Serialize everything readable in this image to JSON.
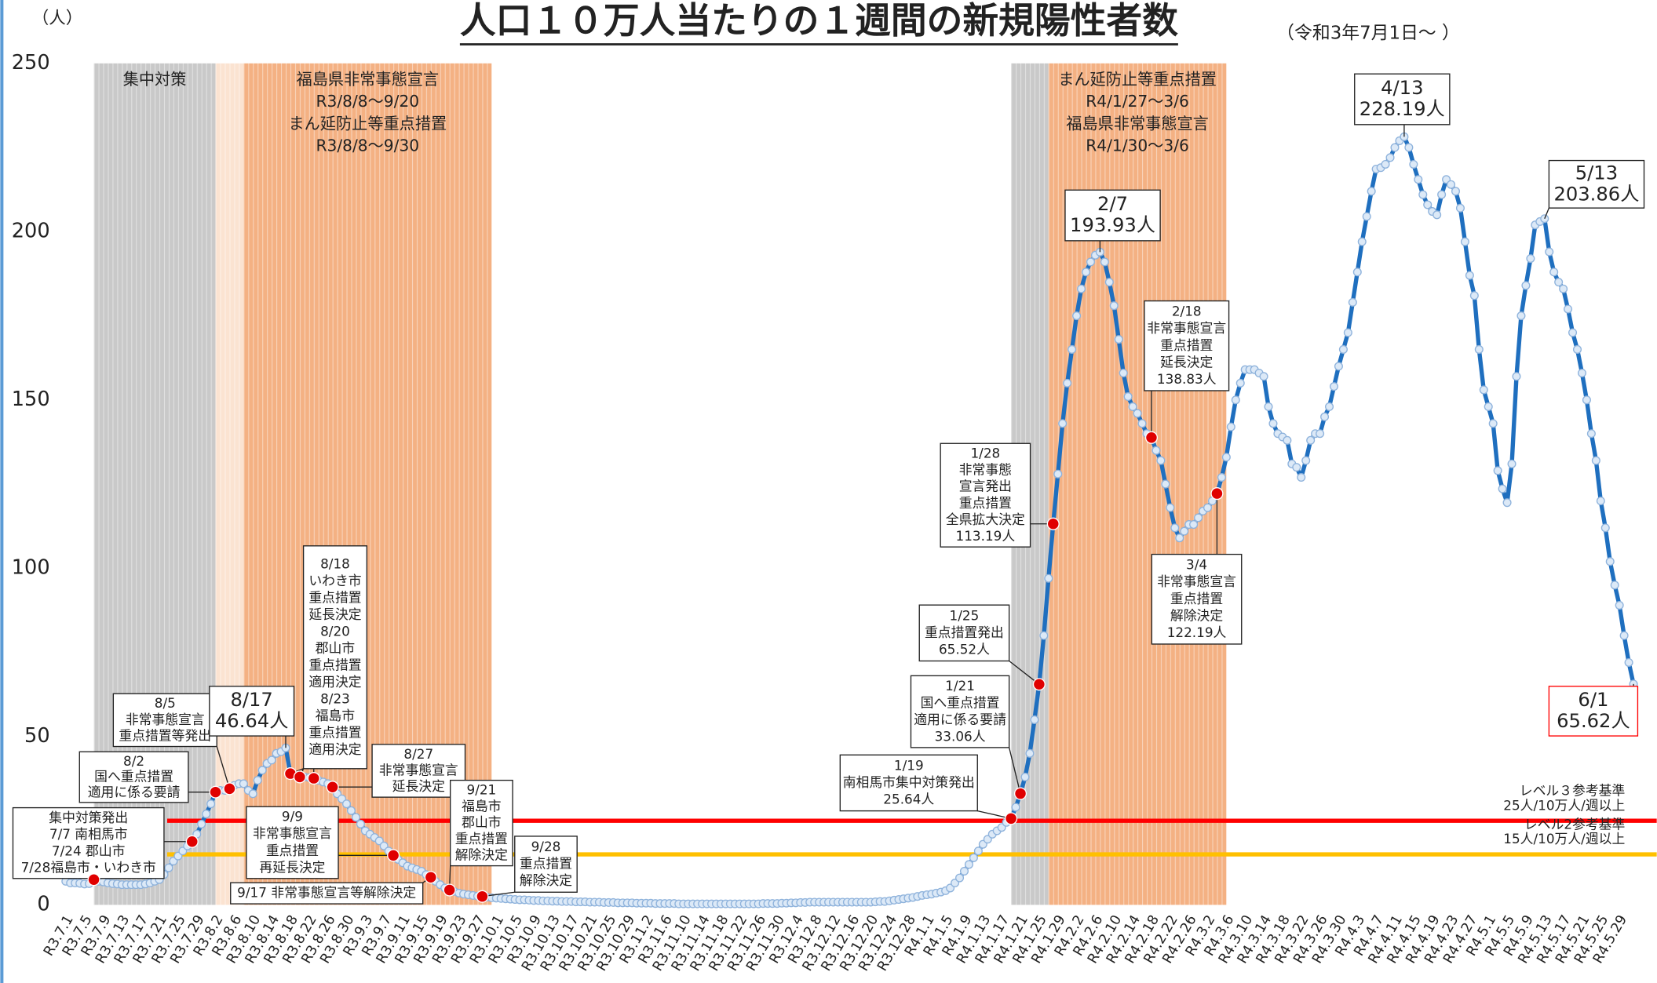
{
  "chart_data": {
    "type": "line",
    "title": "人口１０万人当たりの１週間の新規陽性者数",
    "subtitle": "（令和3年7月1日～ ）",
    "y_unit": "（人）",
    "categories": [
      "R3.7.1",
      null,
      null,
      null,
      "R3.7.5",
      null,
      null,
      null,
      "R3.7.9",
      null,
      null,
      null,
      "R3.7.13",
      null,
      null,
      null,
      "R3.7.17",
      null,
      null,
      null,
      "R3.7.21",
      null,
      null,
      null,
      "R3.7.25",
      null,
      null,
      null,
      "R3.7.29",
      null,
      null,
      null,
      "R3.8.2",
      null,
      null,
      null,
      "R3.8.6",
      null,
      null,
      null,
      "R3.8.10",
      null,
      null,
      null,
      "R3.8.14",
      null,
      null,
      null,
      "R3.8.18",
      null,
      null,
      null,
      "R3.8.22",
      null,
      null,
      null,
      "R3.8.26",
      null,
      null,
      null,
      "R3.8.30",
      null,
      null,
      null,
      "R3.9.3",
      null,
      null,
      null,
      "R3.9.7",
      null,
      null,
      null,
      "R3.9.11",
      null,
      null,
      null,
      "R3.9.15",
      null,
      null,
      null,
      "R3.9.19",
      null,
      null,
      null,
      "R3.9.23",
      null,
      null,
      null,
      "R3.9.27",
      null,
      null,
      null,
      "R3.10.1",
      null,
      null,
      null,
      "R3.10.5",
      null,
      null,
      null,
      "R3.10.9",
      null,
      null,
      null,
      "R3.10.13",
      null,
      null,
      null,
      "R3.10.17",
      null,
      null,
      null,
      "R3.10.21",
      null,
      null,
      null,
      "R3.10.25",
      null,
      null,
      null,
      "R3.10.29",
      null,
      null,
      null,
      "R3.11.2",
      null,
      null,
      null,
      "R3.11.6",
      null,
      null,
      null,
      "R3.11.10",
      null,
      null,
      null,
      "R3.11.14",
      null,
      null,
      null,
      "R3.11.18",
      null,
      null,
      null,
      "R3.11.22",
      null,
      null,
      null,
      "R3.11.26",
      null,
      null,
      null,
      "R3.11.30",
      null,
      null,
      null,
      "R3.12.4",
      null,
      null,
      null,
      "R3.12.8",
      null,
      null,
      null,
      "R3.12.12",
      null,
      null,
      null,
      "R3.12.16",
      null,
      null,
      null,
      "R3.12.20",
      null,
      null,
      null,
      "R3.12.24",
      null,
      null,
      null,
      "R3.12.28",
      null,
      null,
      null,
      "R4.1.1",
      null,
      null,
      null,
      "R4.1.5",
      null,
      null,
      null,
      "R4.1.9",
      null,
      null,
      null,
      "R4.1.13",
      null,
      null,
      null,
      "R4.1.17",
      null,
      null,
      null,
      "R4.1.21",
      null,
      null,
      null,
      "R4.1.25",
      null,
      null,
      null,
      "R4.1.29",
      null,
      null,
      null,
      "R4.2.2",
      null,
      null,
      null,
      "R4.2.6",
      null,
      null,
      null,
      "R4.2.10",
      null,
      null,
      null,
      "R4.2.14",
      null,
      null,
      null,
      "R4.2.18",
      null,
      null,
      null,
      "R4.2.22",
      null,
      null,
      null,
      "R4.2.26",
      null,
      null,
      null,
      "R4.3.2",
      null,
      null,
      null,
      "R4.3.6",
      null,
      null,
      null,
      "R4.3.10",
      null,
      null,
      null,
      "R4.3.14",
      null,
      null,
      null,
      "R4.3.18",
      null,
      null,
      null,
      "R4.3.22",
      null,
      null,
      null,
      "R4.3.26",
      null,
      null,
      null,
      "R4.3.30",
      null,
      null,
      null,
      "R4.4.3",
      null,
      null,
      null,
      "R4.4.7",
      null,
      null,
      null,
      "R4.4.11",
      null,
      null,
      null,
      "R4.4.15",
      null,
      null,
      null,
      "R4.4.19",
      null,
      null,
      null,
      "R4.4.23",
      null,
      null,
      null,
      "R4.4.27",
      null,
      null,
      null,
      "R4.5.1",
      null,
      null,
      null,
      "R4.5.5",
      null,
      null,
      null,
      "R4.5.9",
      null,
      null,
      null,
      "R4.5.13",
      null,
      null,
      null,
      "R4.5.17",
      null,
      null,
      null,
      "R4.5.21",
      null,
      null,
      null,
      "R4.5.25",
      null,
      null,
      null,
      "R4.5.29",
      null,
      null,
      null
    ],
    "series": [
      {
        "color": "#1f6fbf",
        "marker_color": "#dce9f7",
        "values": [
          7,
          6.5,
          6.5,
          6.4,
          6.2,
          6.3,
          7.5,
          7,
          6.8,
          6.5,
          6.3,
          6.2,
          6,
          6,
          6,
          6,
          6,
          6.2,
          6.5,
          7,
          7.5,
          9,
          11,
          13,
          14.5,
          16,
          17.5,
          18.8,
          21,
          24,
          27,
          30,
          33.5,
          34,
          34,
          34.5,
          35.5,
          36,
          36,
          34,
          33,
          37,
          40,
          42,
          43,
          45,
          45.5,
          46.64,
          39,
          38.5,
          38,
          38,
          37.8,
          37.6,
          37,
          36.5,
          36,
          35,
          33,
          31.5,
          30,
          28,
          26,
          24,
          22,
          21,
          20,
          19,
          17.5,
          16,
          14.7,
          13.5,
          12.5,
          11.5,
          11,
          10.5,
          10,
          9,
          8.2,
          7,
          6,
          5,
          4.4,
          4,
          3.5,
          3.2,
          3,
          2.8,
          2.6,
          2.5,
          2.3,
          2.1,
          2,
          1.9,
          1.8,
          1.7,
          1.6,
          1.5,
          1.5,
          1.4,
          1.3,
          1.3,
          1.2,
          1.2,
          1.1,
          1.1,
          1,
          1,
          1,
          0.9,
          0.9,
          0.9,
          0.8,
          0.8,
          0.8,
          0.7,
          0.7,
          0.7,
          0.6,
          0.6,
          0.6,
          0.6,
          0.5,
          0.5,
          0.5,
          0.5,
          0.4,
          0.4,
          0.4,
          0.4,
          0.4,
          0.3,
          0.3,
          0.3,
          0.3,
          0.3,
          0.3,
          0.3,
          0.3,
          0.3,
          0.3,
          0.3,
          0.3,
          0.3,
          0.3,
          0.3,
          0.3,
          0.3,
          0.3,
          0.4,
          0.4,
          0.4,
          0.4,
          0.5,
          0.5,
          0.6,
          0.6,
          0.7,
          0.7,
          0.8,
          0.8,
          0.8,
          0.8,
          0.8,
          0.8,
          0.8,
          0.8,
          0.8,
          0.8,
          0.8,
          0.8,
          0.8,
          0.8,
          0.9,
          1,
          1,
          1.2,
          1.4,
          1.6,
          1.8,
          2,
          2.2,
          2.5,
          2.8,
          3,
          3.2,
          3.5,
          3.8,
          4.2,
          5,
          6.5,
          8,
          10,
          12,
          14,
          16,
          18,
          19.5,
          21,
          22,
          23,
          24.5,
          25.64,
          29,
          33.06,
          38,
          45,
          55,
          65.52,
          80,
          97,
          113.19,
          128,
          143,
          155,
          165,
          175,
          183,
          188,
          191,
          193,
          193.93,
          191,
          185,
          178,
          168,
          158,
          151,
          148,
          146,
          143,
          140,
          138.83,
          135,
          132,
          125,
          118,
          112,
          109,
          111,
          113,
          113,
          115,
          117,
          118,
          120,
          122.19,
          127,
          133,
          142,
          150,
          155,
          159,
          159,
          159,
          158,
          157,
          148,
          143,
          140,
          139,
          138,
          131,
          130,
          127,
          132,
          138,
          140,
          140,
          145,
          148,
          154,
          160,
          165,
          170,
          179,
          188,
          197,
          204.5,
          212,
          218.6,
          219,
          220,
          222,
          225,
          227,
          228.19,
          225,
          220,
          215.5,
          211,
          208,
          206,
          205,
          211,
          215.5,
          214,
          212,
          207,
          197,
          187,
          181,
          165,
          153,
          148,
          143,
          129,
          123.6,
          119.5,
          131,
          157,
          175,
          184,
          192,
          202,
          203,
          203.86,
          194,
          188,
          185,
          183,
          177,
          170,
          165,
          158,
          150,
          140,
          132,
          120,
          112,
          102,
          95,
          89,
          80,
          72,
          65.62
        ]
      }
    ],
    "ylim": [
      0,
      250
    ],
    "yticks": [
      0,
      50,
      100,
      150,
      200,
      250
    ],
    "highlight_color": "#e00000",
    "periods": [
      {
        "start": 6,
        "end": 32,
        "color": "#c9c9c9",
        "label": [
          "集中対策"
        ]
      },
      {
        "start": 32,
        "end": 38,
        "color": "#fbe3d1"
      },
      {
        "start": 38,
        "end": 91,
        "color": "#f4b183",
        "label": [
          "福島県非常事態宣言",
          "R3/8/8～9/20",
          "まん延防止等重点措置",
          "R3/8/8～9/30"
        ]
      },
      {
        "start": 202,
        "end": 210,
        "color": "#c9c9c9"
      },
      {
        "start": 210,
        "end": 248,
        "color": "#f4b183",
        "label": [
          "まん延防止等重点措置",
          "R4/1/27～3/6",
          "福島県非常事態宣言",
          "R4/1/30～3/6"
        ]
      }
    ],
    "reference_lines": [
      {
        "value": 25,
        "color": "#ff0000",
        "label": [
          "レベル３参考基準",
          "25人/10万人/週以上"
        ]
      },
      {
        "value": 15,
        "color": "#ffc000",
        "label": [
          "レベル2参考基準",
          "15人/10万人/週以上"
        ]
      }
    ],
    "annotations": [
      {
        "points": [
          6,
          27
        ],
        "highlight": true,
        "lines": [
          "集中対策発出",
          "7/7 南相馬市",
          "7/24  郡山市",
          "7/28福島市・いわき市"
        ]
      },
      {
        "points": [
          32
        ],
        "highlight": true,
        "lines": [
          "8/2",
          "国へ重点措置",
          "適用に係る要請"
        ]
      },
      {
        "points": [
          35
        ],
        "highlight": true,
        "lines": [
          "8/5",
          "非常事態宣言",
          "重点措置等発出"
        ]
      },
      {
        "points": [
          47
        ],
        "highlight": false,
        "lines": [
          "8/17",
          "46.64人"
        ]
      },
      {
        "points": [
          48,
          50,
          53
        ],
        "highlight": true,
        "lines": [
          "8/18",
          "いわき市",
          "重点措置",
          "延長決定",
          "8/20",
          "郡山市",
          "重点措置",
          "適用決定",
          "8/23",
          "福島市",
          "重点措置",
          "適用決定"
        ]
      },
      {
        "points": [
          57
        ],
        "highlight": true,
        "lines": [
          "8/27",
          "非常事態宣言",
          "延長決定"
        ]
      },
      {
        "points": [
          70
        ],
        "highlight": true,
        "lines": [
          "9/9",
          "非常事態宣言",
          "重点措置",
          "再延長決定"
        ]
      },
      {
        "points": [
          78
        ],
        "highlight": true,
        "lines": [
          "9/17  非常事態宣言等解除決定"
        ]
      },
      {
        "points": [
          82
        ],
        "highlight": true,
        "lines": [
          "9/21",
          "福島市",
          "郡山市",
          "重点措置",
          "解除決定"
        ]
      },
      {
        "points": [
          89
        ],
        "highlight": true,
        "lines": [
          "9/28",
          "重点措置",
          "解除決定"
        ]
      },
      {
        "points": [
          202
        ],
        "highlight": true,
        "lines": [
          "1/19",
          "南相馬市集中対策発出",
          "25.64人"
        ]
      },
      {
        "points": [
          204
        ],
        "highlight": true,
        "lines": [
          "1/21",
          "国へ重点措置",
          "適用に係る要請",
          "33.06人"
        ]
      },
      {
        "points": [
          208
        ],
        "highlight": true,
        "lines": [
          "1/25",
          "重点措置発出",
          "65.52人"
        ]
      },
      {
        "points": [
          211
        ],
        "highlight": true,
        "lines": [
          "1/28",
          "非常事態",
          "宣言発出",
          "重点措置",
          "全県拡大決定",
          "113.19人"
        ]
      },
      {
        "points": [
          221
        ],
        "highlight": false,
        "lines": [
          "2/7",
          "193.93人"
        ]
      },
      {
        "points": [
          232
        ],
        "highlight": true,
        "lines": [
          "2/18",
          "非常事態宣言",
          "重点措置",
          "延長決定",
          "138.83人"
        ]
      },
      {
        "points": [
          246
        ],
        "highlight": true,
        "lines": [
          "3/4",
          "非常事態宣言",
          "重点措置",
          "解除決定",
          "122.19人"
        ]
      },
      {
        "points": [
          286
        ],
        "highlight": false,
        "lines": [
          "4/13",
          "228.19人"
        ]
      },
      {
        "points": [
          316
        ],
        "highlight": false,
        "lines": [
          "5/13",
          "203.86人"
        ]
      },
      {
        "points": [
          335
        ],
        "highlight": false,
        "color": "#ff0000",
        "lines": [
          "6/1",
          "65.62人"
        ]
      }
    ]
  }
}
